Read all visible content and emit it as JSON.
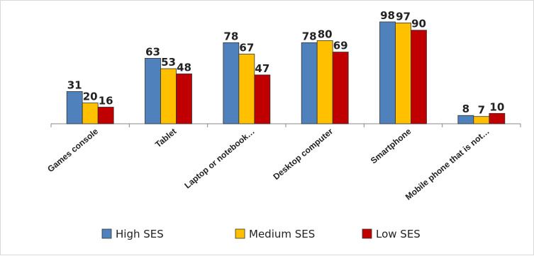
{
  "chart_data": {
    "type": "bar",
    "categories": [
      "Games console",
      "Tablet",
      "Laptop or notebook…",
      "Desktop computer",
      "Smartphone",
      "Mobile phone that is not…"
    ],
    "series": [
      {
        "name": "High SES",
        "values": [
          31,
          63,
          78,
          78,
          98,
          8
        ]
      },
      {
        "name": "Medium SES",
        "values": [
          20,
          53,
          67,
          80,
          97,
          7
        ]
      },
      {
        "name": "Low SES",
        "values": [
          16,
          48,
          47,
          69,
          90,
          10
        ]
      }
    ],
    "ylim": [
      0,
      100
    ],
    "grid": false,
    "legend": "bottom",
    "colors": {
      "High SES": "#4f81bd",
      "Medium SES": "#ffc000",
      "Low SES": "#c00000"
    }
  }
}
